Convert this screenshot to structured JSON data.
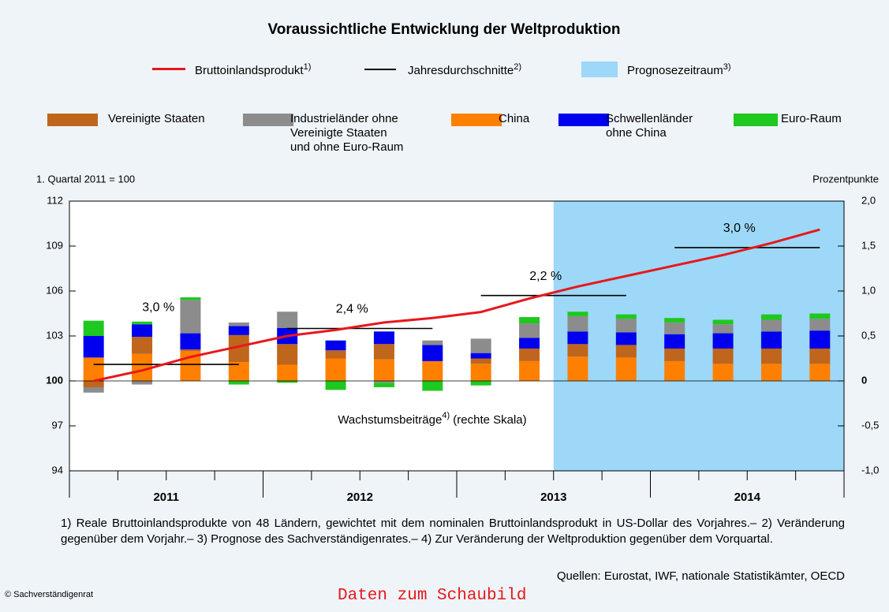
{
  "chart_data": {
    "type": "bar-line",
    "title": "Voraussichtliche Entwicklung der Weltproduktion",
    "line_legend": [
      {
        "name": "Bruttoinlandsprodukt",
        "note": "1)",
        "color": "#e8171c"
      },
      {
        "name": "Jahresdurchschnitte",
        "note": "2)",
        "color": "#000000"
      },
      {
        "name": "Prognosezeitraum",
        "note": "3)",
        "color": "#9dd8f8"
      }
    ],
    "ylabel": "1. Quartal 2011 = 100",
    "y2label": "Prozentpunkte",
    "ylim": [
      94,
      112
    ],
    "yticks": [
      94,
      97,
      100,
      103,
      106,
      109,
      112
    ],
    "y2lim": [
      -1,
      2
    ],
    "y2ticks": [
      {
        "value": -1,
        "label": "-1,0"
      },
      {
        "value": -0.5,
        "label": "-0,5"
      },
      0,
      {
        "value": 0.5,
        "label": "0,5"
      },
      {
        "value": 1,
        "label": "1,0"
      },
      {
        "value": 1.5,
        "label": "1,5"
      },
      {
        "value": 2,
        "label": "2,0"
      }
    ],
    "categories": [
      null,
      null,
      null,
      null,
      null,
      null,
      null,
      null,
      null,
      null,
      null,
      null,
      null,
      null,
      null,
      null
    ],
    "year_labels": [
      "2011",
      "2012",
      "2013",
      "2014"
    ],
    "forecast_start": 10,
    "line": {
      "name": "Bruttoinlandsprodukt",
      "color": "#e8171c",
      "values": [
        100.0,
        100.7,
        101.6,
        102.3,
        103.0,
        103.4,
        103.9,
        104.2,
        104.6,
        105.5,
        106.3,
        107.0,
        107.7,
        108.4,
        109.2,
        110.1
      ]
    },
    "annual_averages": [
      {
        "value": 101.1,
        "label": "3,0 %"
      },
      {
        "value": 103.5,
        "label": "2,4 %"
      },
      {
        "value": 105.7,
        "label": "2,2 %"
      },
      {
        "value": 108.9,
        "label": "3,0 %"
      }
    ],
    "series": [
      {
        "name": "Vereinigte Staaten",
        "color": "#c0651c",
        "axis": "y2",
        "values": [
          -0.07,
          0.19,
          0.02,
          0.3,
          0.23,
          0.09,
          0.17,
          0,
          0.06,
          0.14,
          0.14,
          0.14,
          0.14,
          0.17,
          0.17,
          0.17
        ]
      },
      {
        "name": "Industrieländer ohne\nVereinigte Staaten\nund ohne Euro-Raum",
        "color": "#8c8c8c",
        "axis": "y2",
        "values": [
          -0.06,
          -0.04,
          0.37,
          0.04,
          0.18,
          0,
          -0.02,
          0.05,
          0.16,
          0.16,
          0.17,
          0.15,
          0.13,
          0.1,
          0.13,
          0.13
        ]
      },
      {
        "name": "China",
        "color": "#ff8000",
        "axis": "y2",
        "values": [
          0.26,
          0.3,
          0.33,
          0.21,
          0.18,
          0.25,
          0.24,
          0.22,
          0.19,
          0.22,
          0.27,
          0.26,
          0.22,
          0.19,
          0.19,
          0.19
        ]
      },
      {
        "name": "Schwellenländer\nohne China",
        "color": "#0000ee",
        "axis": "y2",
        "values": [
          0.24,
          0.14,
          0.18,
          0.1,
          0.18,
          0.11,
          0.14,
          0.18,
          0.06,
          0.12,
          0.14,
          0.14,
          0.16,
          0.17,
          0.19,
          0.2
        ]
      },
      {
        "name": "Euro-Raum",
        "color": "#1ec81e",
        "axis": "y2",
        "values": [
          0.17,
          0.03,
          0.03,
          -0.04,
          -0.02,
          -0.1,
          -0.05,
          -0.11,
          -0.05,
          0.07,
          0.05,
          0.05,
          0.05,
          0.05,
          0.06,
          0.06
        ]
      }
    ],
    "annotation": {
      "text": "Wachstumsbeiträge",
      "note": "4)",
      "suffix": " (rechte Skala)"
    },
    "footnote": "1) Reale Bruttoinlandsprodukte von 48 Ländern, gewichtet mit dem nominalen Bruttoinlandsprodukt in US-Dollar des Vorjahres.– 2) Veränderung gegenüber dem Vorjahr.– 3) Prognose des Sachverständigenrates.– 4) Zur Veränderung der Weltproduktion gegenüber dem Vorquartal.",
    "source": "Quellen: Eurostat, IWF, nationale Statistikämter, OECD",
    "copyright": "© Sachverständigenrat",
    "data_link": "Daten zum Schaubild"
  }
}
